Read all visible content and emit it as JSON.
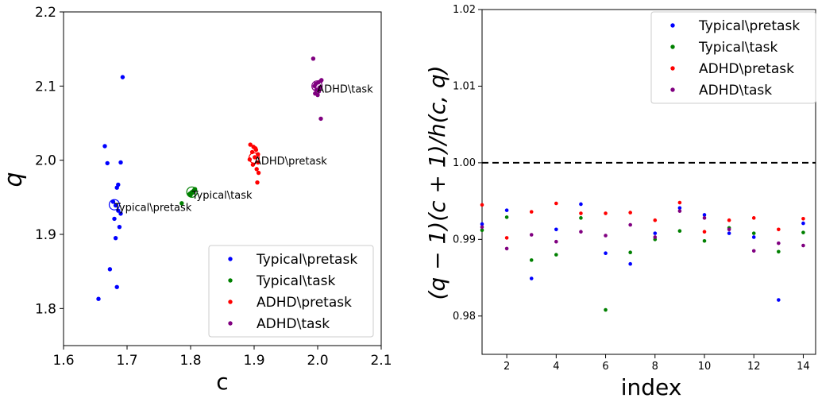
{
  "chart_data": [
    {
      "type": "scatter",
      "xlabel": "c",
      "ylabel": "q",
      "xlim": [
        1.6,
        2.1
      ],
      "ylim": [
        1.75,
        2.2
      ],
      "xticks": [
        "1.6",
        "1.7",
        "1.8",
        "1.9",
        "2.0",
        "2.1"
      ],
      "yticks": [
        "1.8",
        "1.9",
        "2.0",
        "2.1",
        "2.2"
      ],
      "legend_position": "bottom-right",
      "grid": false,
      "series": [
        {
          "name": "Typical\\pretask",
          "color": "#0000ff",
          "points": [
            [
              1.693,
              2.112
            ],
            [
              1.665,
              2.019
            ],
            [
              1.669,
              1.996
            ],
            [
              1.69,
              1.997
            ],
            [
              1.686,
              1.967
            ],
            [
              1.684,
              1.963
            ],
            [
              1.682,
              1.939
            ],
            [
              1.686,
              1.932
            ],
            [
              1.69,
              1.928
            ],
            [
              1.68,
              1.921
            ],
            [
              1.688,
              1.91
            ],
            [
              1.682,
              1.895
            ],
            [
              1.673,
              1.853
            ],
            [
              1.684,
              1.829
            ],
            [
              1.655,
              1.813
            ],
            [
              1.678,
              1.944
            ]
          ],
          "centroid": [
            1.68,
            1.94
          ],
          "centroid_label": "Typical\\pretask"
        },
        {
          "name": "Typical\\task",
          "color": "#008000",
          "points": [
            [
              1.799,
              1.955
            ],
            [
              1.802,
              1.957
            ],
            [
              1.804,
              1.958
            ],
            [
              1.806,
              1.96
            ],
            [
              1.8,
              1.953
            ],
            [
              1.803,
              1.956
            ],
            [
              1.798,
              1.954
            ],
            [
              1.805,
              1.959
            ],
            [
              1.801,
              1.956
            ],
            [
              1.786,
              1.942
            ],
            [
              1.807,
              1.961
            ]
          ],
          "centroid": [
            1.802,
            1.957
          ],
          "centroid_label": "Typical\\task"
        },
        {
          "name": "ADHD\\pretask",
          "color": "#ff0000",
          "points": [
            [
              1.894,
              2.021
            ],
            [
              1.899,
              2.018
            ],
            [
              1.903,
              2.014
            ],
            [
              1.897,
              2.011
            ],
            [
              1.906,
              2.008
            ],
            [
              1.901,
              2.004
            ],
            [
              1.893,
              2.001
            ],
            [
              1.906,
              1.997
            ],
            [
              1.898,
              1.994
            ],
            [
              1.904,
              1.988
            ],
            [
              1.907,
              1.983
            ],
            [
              1.905,
              1.97
            ],
            [
              1.902,
              2.016
            ]
          ],
          "centroid": [
            1.9,
            2.003
          ],
          "centroid_label": "ADHD\\pretask"
        },
        {
          "name": "ADHD\\task",
          "color": "#800080",
          "points": [
            [
              1.993,
              2.137
            ],
            [
              2.005,
              2.107
            ],
            [
              1.997,
              2.103
            ],
            [
              2.001,
              2.105
            ],
            [
              1.995,
              2.1
            ],
            [
              2.003,
              2.098
            ],
            [
              1.998,
              2.095
            ],
            [
              2.002,
              2.093
            ],
            [
              1.996,
              2.09
            ],
            [
              2.0,
              2.088
            ],
            [
              2.006,
              2.108
            ],
            [
              2.005,
              2.056
            ]
          ],
          "centroid": [
            1.999,
            2.1
          ],
          "centroid_label": "ADHD\\task"
        }
      ]
    },
    {
      "type": "scatter",
      "xlabel": "index",
      "ylabel": "(q − 1)(c + 1)/h(c, q)",
      "xlim": [
        1,
        14.5
      ],
      "ylim": [
        0.975,
        1.02
      ],
      "xticks": [
        "2",
        "4",
        "6",
        "8",
        "10",
        "12",
        "14"
      ],
      "yticks": [
        "0.98",
        "0.99",
        "1.00",
        "1.01",
        "1.02"
      ],
      "reference_line": 1.0,
      "legend_position": "top-right",
      "grid": false,
      "series": [
        {
          "name": "Typical\\pretask",
          "color": "#0000ff",
          "x": [
            1,
            2,
            3,
            4,
            5,
            6,
            7,
            8,
            9,
            10,
            11,
            12,
            13,
            14
          ],
          "values": [
            0.992,
            0.9938,
            0.9849,
            0.9913,
            0.9946,
            0.9882,
            0.9868,
            0.9908,
            0.9941,
            0.9932,
            0.9908,
            0.9903,
            0.9821,
            0.9921
          ]
        },
        {
          "name": "Typical\\task",
          "color": "#008000",
          "x": [
            1,
            2,
            3,
            4,
            5,
            6,
            7,
            8,
            9,
            10,
            11,
            12,
            13,
            14
          ],
          "values": [
            0.9912,
            0.9929,
            0.9873,
            0.988,
            0.9928,
            0.9808,
            0.9883,
            0.99,
            0.9911,
            0.9898,
            0.9915,
            0.9908,
            0.9884,
            0.9909
          ]
        },
        {
          "name": "ADHD\\pretask",
          "color": "#ff0000",
          "x": [
            1,
            2,
            3,
            4,
            5,
            6,
            7,
            8,
            9,
            10,
            11,
            12,
            13,
            14
          ],
          "values": [
            0.9945,
            0.9902,
            0.9936,
            0.9947,
            0.9934,
            0.9934,
            0.9935,
            0.9925,
            0.9948,
            0.991,
            0.9925,
            0.9928,
            0.9913,
            0.9927
          ]
        },
        {
          "name": "ADHD\\task",
          "color": "#800080",
          "x": [
            1,
            2,
            3,
            4,
            5,
            6,
            7,
            8,
            9,
            10,
            11,
            12,
            13,
            14
          ],
          "values": [
            0.9916,
            0.9888,
            0.9906,
            0.9897,
            0.991,
            0.9905,
            0.9919,
            0.9903,
            0.9937,
            0.9928,
            0.9913,
            0.9885,
            0.9895,
            0.9892
          ]
        }
      ]
    }
  ]
}
